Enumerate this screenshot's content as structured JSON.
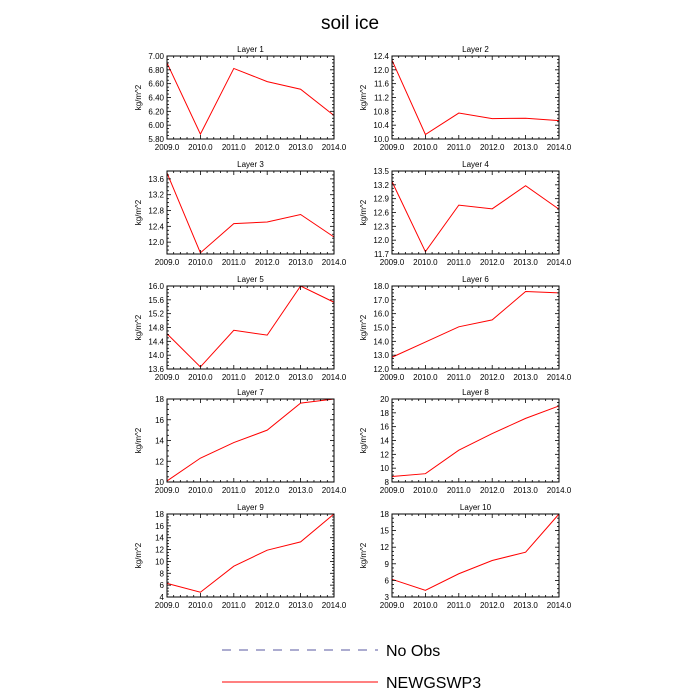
{
  "chart_data": {
    "type": "line",
    "title": "soil ice",
    "x": [
      2009.0,
      2010.0,
      2011.0,
      2012.0,
      2013.0,
      2014.0
    ],
    "x_tick_labels": [
      "2009.0",
      "2010.0",
      "2011.0",
      "2012.0",
      "2013.0",
      "2014.0"
    ],
    "panels": [
      {
        "title": "Layer 1",
        "ylabel": "kg/m^2",
        "ylim": [
          5.8,
          7.0
        ],
        "yticks": [
          "5.80",
          "6.00",
          "6.20",
          "6.40",
          "6.60",
          "6.80",
          "7.00"
        ],
        "series": [
          {
            "name": "NEWGSWP3",
            "values": [
              6.9,
              5.87,
              6.82,
              6.63,
              6.52,
              6.14
            ]
          }
        ]
      },
      {
        "title": "Layer 2",
        "ylabel": "kg/m^2",
        "ylim": [
          10.0,
          12.4
        ],
        "yticks": [
          "10.0",
          "10.4",
          "10.8",
          "11.2",
          "11.6",
          "12.0",
          "12.4"
        ],
        "series": [
          {
            "name": "NEWGSWP3",
            "values": [
              12.28,
              10.13,
              10.75,
              10.59,
              10.6,
              10.53
            ]
          }
        ]
      },
      {
        "title": "Layer 3",
        "ylabel": "kg/m^2",
        "ylim": [
          11.7,
          13.8
        ],
        "yticks": [
          "12.0",
          "12.4",
          "12.8",
          "13.2",
          "13.6"
        ],
        "series": [
          {
            "name": "NEWGSWP3",
            "values": [
              13.75,
              11.73,
              12.47,
              12.51,
              12.7,
              12.13
            ]
          }
        ]
      },
      {
        "title": "Layer 4",
        "ylabel": "kg/m^2",
        "ylim": [
          11.7,
          13.5
        ],
        "yticks": [
          "11.7",
          "12.0",
          "12.3",
          "12.6",
          "12.9",
          "13.2",
          "13.5"
        ],
        "series": [
          {
            "name": "NEWGSWP3",
            "values": [
              13.27,
              11.75,
              12.76,
              12.68,
              13.18,
              12.67
            ]
          }
        ]
      },
      {
        "title": "Layer 5",
        "ylabel": "kg/m^2",
        "ylim": [
          13.6,
          16.0
        ],
        "yticks": [
          "13.6",
          "14.0",
          "14.4",
          "14.8",
          "15.2",
          "15.6",
          "16.0"
        ],
        "series": [
          {
            "name": "NEWGSWP3",
            "values": [
              14.62,
              13.66,
              14.72,
              14.58,
              16.0,
              15.53
            ]
          }
        ]
      },
      {
        "title": "Layer 6",
        "ylabel": "kg/m^2",
        "ylim": [
          12.0,
          18.0
        ],
        "yticks": [
          "12.0",
          "13.0",
          "14.0",
          "15.0",
          "16.0",
          "17.0",
          "18.0"
        ],
        "series": [
          {
            "name": "NEWGSWP3",
            "values": [
              12.85,
              13.95,
              15.05,
              15.55,
              17.6,
              17.5
            ]
          }
        ]
      },
      {
        "title": "Layer 7",
        "ylabel": "kg/m^2",
        "ylim": [
          10,
          18
        ],
        "yticks": [
          "10",
          "12",
          "14",
          "16",
          "18"
        ],
        "series": [
          {
            "name": "NEWGSWP3",
            "values": [
              10.1,
              12.3,
              13.8,
              15.0,
              17.6,
              18.0
            ]
          }
        ]
      },
      {
        "title": "Layer 8",
        "ylabel": "kg/m^2",
        "ylim": [
          8,
          20
        ],
        "yticks": [
          "8",
          "10",
          "12",
          "14",
          "16",
          "18",
          "20"
        ],
        "series": [
          {
            "name": "NEWGSWP3",
            "values": [
              8.8,
              9.2,
              12.6,
              15.0,
              17.2,
              19.0
            ]
          }
        ]
      },
      {
        "title": "Layer 9",
        "ylabel": "kg/m^2",
        "ylim": [
          4,
          18
        ],
        "yticks": [
          "4",
          "6",
          "8",
          "10",
          "12",
          "14",
          "16",
          "18"
        ],
        "series": [
          {
            "name": "NEWGSWP3",
            "values": [
              6.3,
              4.8,
              9.2,
              11.9,
              13.3,
              18.0
            ]
          }
        ]
      },
      {
        "title": "Layer 10",
        "ylabel": "kg/m^2",
        "ylim": [
          3,
          18
        ],
        "yticks": [
          "3",
          "6",
          "9",
          "12",
          "15",
          "18"
        ],
        "series": [
          {
            "name": "NEWGSWP3",
            "values": [
              6.2,
              4.2,
              7.2,
              9.6,
              11.1,
              18.0
            ]
          }
        ]
      }
    ],
    "legend": [
      {
        "label": "No Obs",
        "style": "dashed",
        "color": "#5a5aa0"
      },
      {
        "label": "NEWGSWP3",
        "style": "solid",
        "color": "#ff0000"
      }
    ]
  }
}
